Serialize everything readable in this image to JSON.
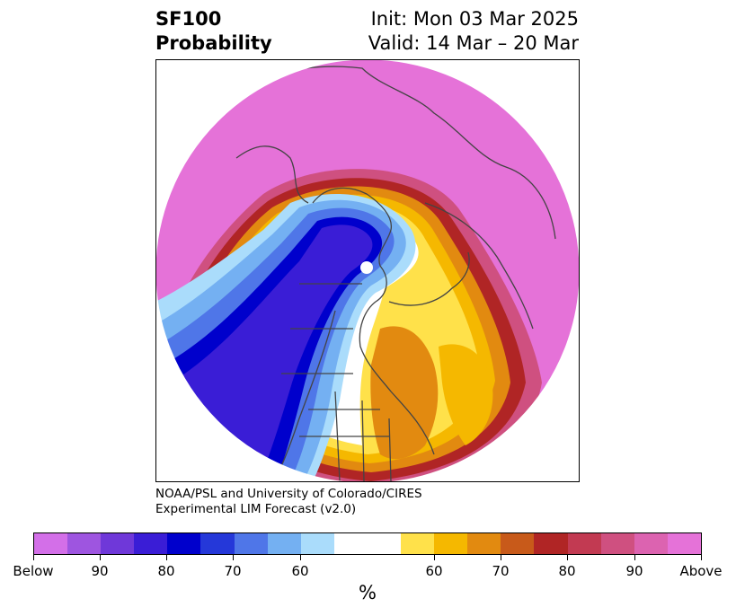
{
  "title": {
    "left_line1": "SF100",
    "left_line2": "Probability",
    "right_line1": "Init: Mon 03 Mar 2025",
    "right_line2": "Valid: 14 Mar – 20 Mar"
  },
  "credit": {
    "line1": "NOAA/PSL and University of Colorado/CIRES",
    "line2": "Experimental LIM Forecast (v2.0)"
  },
  "colorbar": {
    "unit": "%",
    "colors": [
      "#d36fe8",
      "#9e55e0",
      "#6f38d9",
      "#3a1dd6",
      "#0000cc",
      "#2538d9",
      "#4f76e8",
      "#74b0f2",
      "#aadcfb",
      "#ffffff",
      "#ffffff",
      "#ffe14a",
      "#f5b800",
      "#e28a10",
      "#c85a1a",
      "#b02525",
      "#c23a52",
      "#cf5080",
      "#dc63b0",
      "#e572d8"
    ],
    "tick_labels": [
      "Below",
      "90",
      "80",
      "70",
      "60",
      "60",
      "70",
      "80",
      "90",
      "Above"
    ]
  },
  "map": {
    "projection": "north-polar-stereographic",
    "regions": [
      "North America",
      "Greenland",
      "Arctic",
      "Eurasia"
    ],
    "colors": {
      "above_max": "#e572d8",
      "below_max": "#0000cc",
      "coast": "#444444",
      "border": "#333333"
    }
  }
}
